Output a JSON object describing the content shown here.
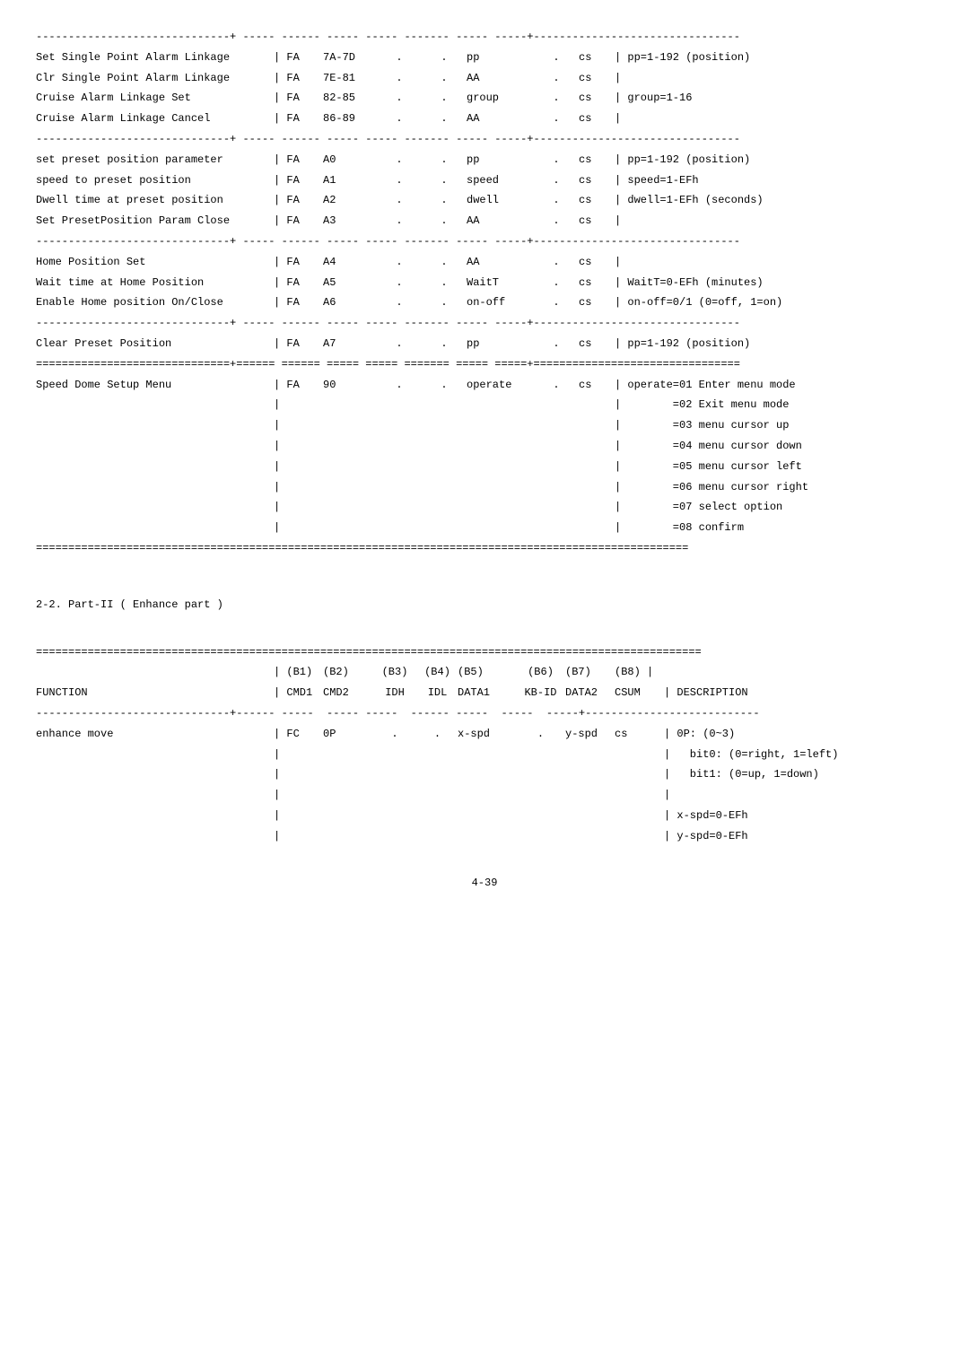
{
  "style": {
    "font_family": "monospace",
    "font_size_pt": 9,
    "text_color": "#000000",
    "bg_color": "#ffffff",
    "dot_placeholder": "."
  },
  "table1": {
    "sep_dash": "------------------------------+ ----- ------ ----- ----- ------- ----- -----+--------------------------------",
    "sep_eq_dbl": "==============================+====== ====== ===== ===== ======= ===== =====+================================",
    "sep_eq_full": "=====================================================================================================",
    "rows": [
      {
        "func": "Set Single Point Alarm Linkage",
        "cmd1": "| FA",
        "cmd2": "7A-7D",
        "d1": "pp",
        "desc": "| pp=1-192 (position)"
      },
      {
        "func": "Clr Single Point Alarm Linkage",
        "cmd1": "| FA",
        "cmd2": "7E-81",
        "d1": "AA",
        "desc": "|"
      },
      {
        "func": "Cruise Alarm Linkage Set",
        "cmd1": "| FA",
        "cmd2": "82-85",
        "d1": "group",
        "desc": "| group=1-16"
      },
      {
        "func": "Cruise Alarm Linkage Cancel",
        "cmd1": "| FA",
        "cmd2": "86-89",
        "d1": "AA",
        "desc": "|"
      },
      {
        "sep": true
      },
      {
        "func": "set preset position parameter",
        "cmd1": "| FA",
        "cmd2": "A0",
        "d1": "pp",
        "desc": "| pp=1-192 (position)"
      },
      {
        "func": "speed to preset position",
        "cmd1": "| FA",
        "cmd2": "A1",
        "d1": "speed",
        "desc": "| speed=1-EFh"
      },
      {
        "func": "Dwell time at preset position",
        "cmd1": "| FA",
        "cmd2": "A2",
        "d1": "dwell",
        "desc": "| dwell=1-EFh (seconds)"
      },
      {
        "func": "Set PresetPosition Param Close",
        "cmd1": "| FA",
        "cmd2": "A3",
        "d1": "AA",
        "desc": "|"
      },
      {
        "sep": true
      },
      {
        "func": "Home Position Set",
        "cmd1": "| FA",
        "cmd2": "A4",
        "d1": "AA",
        "desc": "|"
      },
      {
        "func": "Wait time at Home Position",
        "cmd1": "| FA",
        "cmd2": "A5",
        "d1": "WaitT",
        "desc": "| WaitT=0-EFh (minutes)"
      },
      {
        "func": "Enable Home position On/Close",
        "cmd1": "| FA",
        "cmd2": "A6",
        "d1": "on-off",
        "desc": "| on-off=0/1 (0=off, 1=on)"
      },
      {
        "sep": true
      },
      {
        "func": "Clear Preset Position",
        "cmd1": "| FA",
        "cmd2": "A7",
        "d1": "pp",
        "desc": "| pp=1-192 (position)"
      },
      {
        "sep_dbl": true
      },
      {
        "func": "Speed Dome Setup Menu",
        "cmd1": "| FA",
        "cmd2": "90",
        "d1": "operate",
        "desc": "| operate=01 Enter menu mode"
      },
      {
        "cont": true,
        "desc": "|        =02 Exit menu mode"
      },
      {
        "cont": true,
        "desc": "|        =03 menu cursor up"
      },
      {
        "cont": true,
        "desc": "|        =04 menu cursor down"
      },
      {
        "cont": true,
        "desc": "|        =05 menu cursor left"
      },
      {
        "cont": true,
        "desc": "|        =06 menu cursor right"
      },
      {
        "cont": true,
        "desc": "|        =07 select option"
      },
      {
        "cont": true,
        "desc": "|        =08 confirm"
      }
    ]
  },
  "section2_title": "2-2. Part-II ( Enhance part )",
  "table2": {
    "sep_eq": "=======================================================================================================",
    "header1": {
      "func": "",
      "cmd1": "| (B1)",
      "cmd2": "(B2)",
      "idh": "(B3)",
      "idl": "(B4)",
      "d1": "(B5)",
      "kbid": "(B6)",
      "d2": "(B7)",
      "csum": "(B8) |",
      "desc": ""
    },
    "header2": {
      "func": "FUNCTION",
      "cmd1": "| CMD1",
      "cmd2": "CMD2",
      "idh": "IDH",
      "idl": "IDL",
      "d1": "DATA1",
      "kbid": "KB-ID",
      "d2": "DATA2",
      "csum": "CSUM",
      "desc": "| DESCRIPTION"
    },
    "sep_dash": "------------------------------+------ -----  ----- -----  ------ -----  -----  -----+---------------------------",
    "rows": [
      {
        "func": "enhance move",
        "cmd1": "| FC",
        "cmd2": "0P",
        "idh": ".",
        "idl": ".",
        "d1": "x-spd",
        "kbid": ".",
        "d2": "y-spd",
        "csum": "cs",
        "desc": "| 0P: (0~3)"
      },
      {
        "cont": true,
        "desc": "|   bit0: (0=right, 1=left)"
      },
      {
        "cont": true,
        "desc": "|   bit1: (0=up, 1=down)"
      },
      {
        "cont": true,
        "desc": "|"
      },
      {
        "cont": true,
        "desc": "| x-spd=0-EFh"
      },
      {
        "cont": true,
        "desc": "| y-spd=0-EFh"
      }
    ]
  },
  "page_number": "4-39"
}
